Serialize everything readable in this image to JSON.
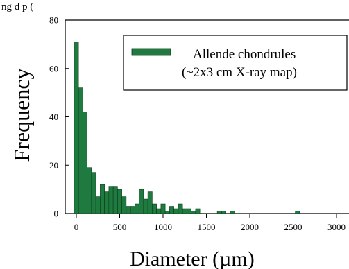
{
  "top_caption": "ng         d     p                   (     ",
  "chart_data": {
    "type": "bar",
    "title": "",
    "xlabel": "Diameter (µm)",
    "ylabel": "Frequency",
    "xlim": [
      -125,
      3000
    ],
    "ylim": [
      0,
      80
    ],
    "xticks": [
      0,
      500,
      1000,
      1500,
      2000,
      2500,
      3000
    ],
    "yticks": [
      0,
      20,
      40,
      60,
      80
    ],
    "bin_width": 50,
    "bar_color": "#1f7a3f",
    "bar_edge_color": "#0a3a1a",
    "grid": false,
    "legend_position": "top-right",
    "series": [
      {
        "name": "Allende chondrules\n(~2x3 cm X-ray map)",
        "bins": [
          {
            "x": 0,
            "value": 71
          },
          {
            "x": 50,
            "value": 52
          },
          {
            "x": 100,
            "value": 42
          },
          {
            "x": 150,
            "value": 19
          },
          {
            "x": 200,
            "value": 17
          },
          {
            "x": 250,
            "value": 7
          },
          {
            "x": 300,
            "value": 12
          },
          {
            "x": 350,
            "value": 9
          },
          {
            "x": 400,
            "value": 11
          },
          {
            "x": 450,
            "value": 11
          },
          {
            "x": 500,
            "value": 10
          },
          {
            "x": 550,
            "value": 7
          },
          {
            "x": 600,
            "value": 3
          },
          {
            "x": 650,
            "value": 3
          },
          {
            "x": 700,
            "value": 4
          },
          {
            "x": 750,
            "value": 10
          },
          {
            "x": 800,
            "value": 6
          },
          {
            "x": 850,
            "value": 9
          },
          {
            "x": 900,
            "value": 4
          },
          {
            "x": 950,
            "value": 2
          },
          {
            "x": 1000,
            "value": 4
          },
          {
            "x": 1050,
            "value": 1
          },
          {
            "x": 1100,
            "value": 3
          },
          {
            "x": 1150,
            "value": 2
          },
          {
            "x": 1200,
            "value": 4
          },
          {
            "x": 1250,
            "value": 2
          },
          {
            "x": 1300,
            "value": 2
          },
          {
            "x": 1350,
            "value": 1
          },
          {
            "x": 1400,
            "value": 2
          },
          {
            "x": 1650,
            "value": 1
          },
          {
            "x": 1700,
            "value": 1
          },
          {
            "x": 1800,
            "value": 1
          },
          {
            "x": 2550,
            "value": 1
          }
        ]
      }
    ],
    "legend": {
      "line1": "Allende chondrules",
      "line2": "(~2x3 cm X-ray map)"
    }
  }
}
